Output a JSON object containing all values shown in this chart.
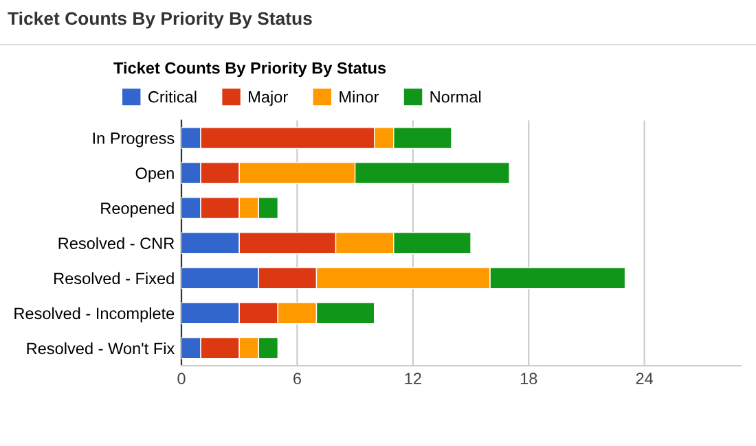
{
  "chart_data": {
    "type": "bar",
    "orientation": "horizontal",
    "stacked": true,
    "title": "Ticket Counts By Priority By Status",
    "annotations": [
      "Ticket Counts By Priority By Status"
    ],
    "categories": [
      "In Progress",
      "Open",
      "Reopened",
      "Resolved - CNR",
      "Resolved - Fixed",
      "Resolved - Incomplete",
      "Resolved - Won't Fix"
    ],
    "series": [
      {
        "name": "Critical",
        "color": "#3366cc",
        "values": [
          1,
          1,
          1,
          3,
          4,
          3,
          1
        ]
      },
      {
        "name": "Major",
        "color": "#dc3912",
        "values": [
          9,
          2,
          2,
          5,
          3,
          2,
          2
        ]
      },
      {
        "name": "Minor",
        "color": "#ff9900",
        "values": [
          1,
          6,
          1,
          3,
          9,
          2,
          1
        ]
      },
      {
        "name": "Normal",
        "color": "#109618",
        "values": [
          3,
          8,
          1,
          4,
          7,
          3,
          1
        ]
      }
    ],
    "xlim": [
      0,
      29
    ],
    "xticks": [
      0,
      6,
      12,
      18,
      24
    ],
    "grid": "x",
    "legend": "top left"
  }
}
